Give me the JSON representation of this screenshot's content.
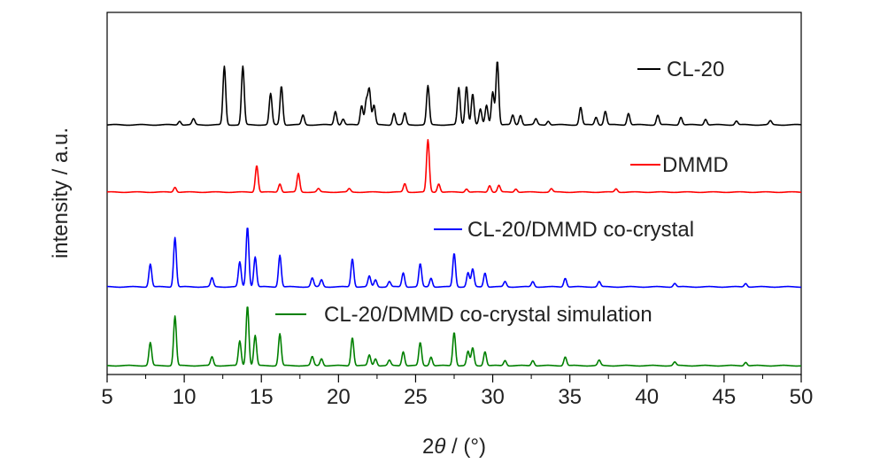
{
  "chart_data": {
    "type": "line",
    "xlabel_prefix": "2",
    "xlabel_symbol": "θ",
    "xlabel_suffix": " / (°)",
    "ylabel": "intensity / a.u.",
    "xlim": [
      5,
      50
    ],
    "x_ticks": [
      5,
      10,
      15,
      20,
      25,
      30,
      35,
      40,
      45,
      50
    ],
    "x_tick_labels": [
      "5",
      "10",
      "15",
      "20",
      "25",
      "30",
      "35",
      "40",
      "45",
      "50"
    ],
    "y_ticks_shown": false,
    "legend_placement": "inline",
    "series": [
      {
        "name": "CL-20",
        "color": "#000000",
        "peaks": [
          [
            9.7,
            0.2
          ],
          [
            10.6,
            0.3
          ],
          [
            12.6,
            3.0
          ],
          [
            13.8,
            3.0
          ],
          [
            15.6,
            1.6
          ],
          [
            16.3,
            2.0
          ],
          [
            17.7,
            0.5
          ],
          [
            19.8,
            0.7
          ],
          [
            20.3,
            0.3
          ],
          [
            21.5,
            1.0
          ],
          [
            21.8,
            1.2
          ],
          [
            22.0,
            1.8
          ],
          [
            22.3,
            1.0
          ],
          [
            23.6,
            0.6
          ],
          [
            24.3,
            0.6
          ],
          [
            25.8,
            2.0
          ],
          [
            27.8,
            1.9
          ],
          [
            28.3,
            2.0
          ],
          [
            28.7,
            1.6
          ],
          [
            29.2,
            0.8
          ],
          [
            29.6,
            1.0
          ],
          [
            30.0,
            1.7
          ],
          [
            30.3,
            3.3
          ],
          [
            31.3,
            0.5
          ],
          [
            31.8,
            0.5
          ],
          [
            32.8,
            0.3
          ],
          [
            33.6,
            0.2
          ],
          [
            35.7,
            0.9
          ],
          [
            36.7,
            0.4
          ],
          [
            37.3,
            0.7
          ],
          [
            38.8,
            0.6
          ],
          [
            40.7,
            0.5
          ],
          [
            42.2,
            0.4
          ],
          [
            43.8,
            0.3
          ],
          [
            45.8,
            0.2
          ],
          [
            48.0,
            0.2
          ]
        ]
      },
      {
        "name": "DMMD",
        "color": "#ff0000",
        "peaks": [
          [
            9.4,
            0.3
          ],
          [
            14.7,
            1.6
          ],
          [
            16.2,
            0.5
          ],
          [
            17.4,
            1.1
          ],
          [
            18.7,
            0.2
          ],
          [
            20.7,
            0.2
          ],
          [
            24.3,
            0.5
          ],
          [
            25.8,
            3.1
          ],
          [
            26.5,
            0.5
          ],
          [
            28.3,
            0.2
          ],
          [
            29.8,
            0.4
          ],
          [
            30.4,
            0.4
          ],
          [
            31.5,
            0.2
          ],
          [
            33.8,
            0.2
          ],
          [
            38.0,
            0.2
          ]
        ]
      },
      {
        "name": "CL-20/DMMD co-crystal",
        "color": "#0000ff",
        "peaks": [
          [
            7.8,
            1.3
          ],
          [
            9.4,
            2.8
          ],
          [
            11.8,
            0.5
          ],
          [
            13.6,
            1.4
          ],
          [
            14.1,
            3.4
          ],
          [
            14.6,
            1.7
          ],
          [
            16.2,
            1.8
          ],
          [
            18.3,
            0.5
          ],
          [
            18.9,
            0.4
          ],
          [
            20.9,
            1.6
          ],
          [
            22.0,
            0.6
          ],
          [
            22.4,
            0.4
          ],
          [
            23.3,
            0.3
          ],
          [
            24.2,
            0.8
          ],
          [
            25.3,
            1.3
          ],
          [
            26.0,
            0.5
          ],
          [
            27.5,
            1.9
          ],
          [
            28.4,
            0.8
          ],
          [
            28.7,
            1.0
          ],
          [
            29.5,
            0.8
          ],
          [
            30.8,
            0.3
          ],
          [
            32.6,
            0.3
          ],
          [
            34.7,
            0.5
          ],
          [
            36.9,
            0.3
          ],
          [
            41.8,
            0.2
          ],
          [
            46.4,
            0.2
          ]
        ]
      },
      {
        "name": "CL-20/DMMD co-crystal simulation",
        "color": "#008000",
        "peaks": [
          [
            7.8,
            1.3
          ],
          [
            9.4,
            2.8
          ],
          [
            11.8,
            0.5
          ],
          [
            13.6,
            1.4
          ],
          [
            14.1,
            3.4
          ],
          [
            14.6,
            1.7
          ],
          [
            16.2,
            1.8
          ],
          [
            18.3,
            0.5
          ],
          [
            18.9,
            0.4
          ],
          [
            20.9,
            1.6
          ],
          [
            22.0,
            0.6
          ],
          [
            22.4,
            0.4
          ],
          [
            23.3,
            0.3
          ],
          [
            24.2,
            0.8
          ],
          [
            25.3,
            1.3
          ],
          [
            26.0,
            0.5
          ],
          [
            27.5,
            1.9
          ],
          [
            28.4,
            0.8
          ],
          [
            28.7,
            1.0
          ],
          [
            29.5,
            0.8
          ],
          [
            30.8,
            0.3
          ],
          [
            32.6,
            0.3
          ],
          [
            34.7,
            0.5
          ],
          [
            36.9,
            0.3
          ],
          [
            41.8,
            0.2
          ],
          [
            46.4,
            0.2
          ]
        ]
      }
    ]
  }
}
